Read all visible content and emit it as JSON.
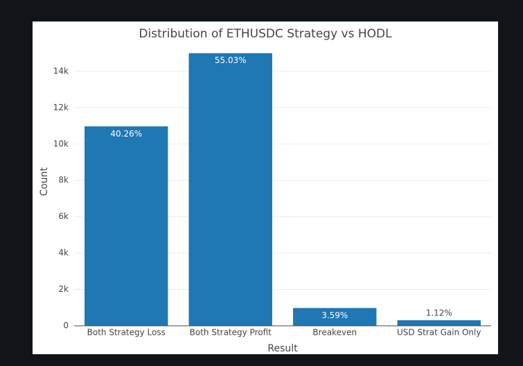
{
  "chart_data": {
    "type": "bar",
    "title": "Distribution of ETHUSDC Strategy vs HODL",
    "x_label": "Result",
    "y_label": "Count",
    "categories": [
      "Both Strategy Loss",
      "Both Strategy Profit",
      "Breakeven",
      "USD Strat Gain Only"
    ],
    "values": [
      10974,
      15000,
      979,
      305
    ],
    "bar_labels": [
      "40.26%",
      "55.03%",
      "3.59%",
      "1.12%"
    ],
    "color": "#1f77b4",
    "ylim": [
      0,
      15790
    ],
    "yticks": [
      0,
      {
        "value": 2000,
        "label": "2k"
      },
      {
        "value": 4000,
        "label": "4k"
      },
      {
        "value": 6000,
        "label": "6k"
      },
      {
        "value": 8000,
        "label": "8k"
      },
      {
        "value": 10000,
        "label": "10k"
      },
      {
        "value": 12000,
        "label": "12k"
      },
      {
        "value": 14000,
        "label": "14k"
      }
    ],
    "grid": true
  }
}
